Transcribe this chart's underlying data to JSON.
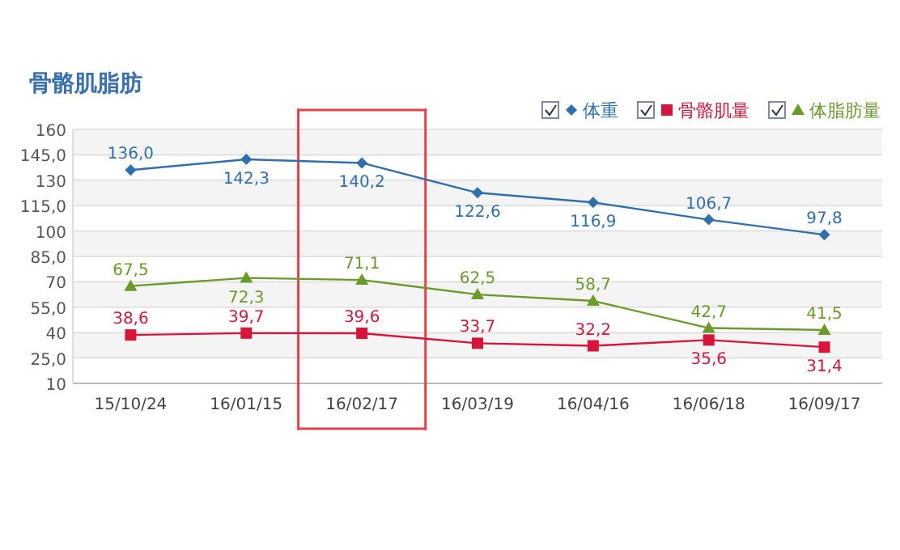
{
  "chart_data": {
    "type": "line",
    "title": "骨骼肌脂肪",
    "categories": [
      "15/10/24",
      "16/01/15",
      "16/02/17",
      "16/03/19",
      "16/04/16",
      "16/06/18",
      "16/09/17"
    ],
    "series": [
      {
        "name": "体重",
        "color": "#2f6fae",
        "marker": "diamond",
        "values": [
          136.0,
          142.3,
          140.2,
          122.6,
          116.9,
          106.7,
          97.8
        ],
        "value_labels": [
          "136,0",
          "142,3",
          "140,2",
          "122,6",
          "116,9",
          "106,7",
          "97,8"
        ]
      },
      {
        "name": "骨骼肌量",
        "color": "#d9143a",
        "marker": "square",
        "values": [
          38.6,
          39.7,
          39.6,
          33.7,
          32.2,
          35.6,
          31.4
        ],
        "value_labels": [
          "38,6",
          "39,7",
          "39,6",
          "33,7",
          "32,2",
          "35,6",
          "31,4"
        ]
      },
      {
        "name": "体脂肪量",
        "color": "#6a9a2a",
        "marker": "triangle",
        "values": [
          67.5,
          72.3,
          71.1,
          62.5,
          58.7,
          42.7,
          41.5
        ],
        "value_labels": [
          "67,5",
          "72,3",
          "71,1",
          "62,5",
          "58,7",
          "42,7",
          "41,5"
        ]
      }
    ],
    "ylim": [
      10,
      160
    ],
    "yticks": [
      10,
      {
        "value": 25,
        "label": "25,0"
      },
      40,
      {
        "value": 55,
        "label": "55,0"
      },
      70,
      {
        "value": 85,
        "label": "85,0"
      },
      100,
      {
        "value": 115,
        "label": "115,0"
      },
      130,
      {
        "value": 145,
        "label": "145,0"
      },
      160
    ],
    "grid": "y",
    "legend": "top right"
  }
}
